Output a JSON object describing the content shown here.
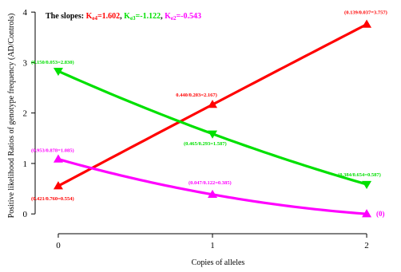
{
  "chart_data": {
    "type": "line",
    "ylabel": "Positive likelihood Ratios of genotype frequency (AD/Controls)",
    "xlabel": "Copies of alleles",
    "x": [
      0,
      1,
      2
    ],
    "xticks": [
      0,
      1,
      2
    ],
    "yticks": [
      0,
      1,
      2,
      3,
      4
    ],
    "xlim": [
      -0.15,
      2.15
    ],
    "ylim": [
      -0.25,
      4.05
    ],
    "slopes": {
      "prefix": "The slopes:",
      "items": [
        {
          "k": "K",
          "sub": "e4",
          "value": "=1.602",
          "color": "#ff0000",
          "sep": ", "
        },
        {
          "k": "K",
          "sub": "e3",
          "value": "=-1.122",
          "color": "#00e000",
          "sep": ", "
        },
        {
          "k": "K",
          "sub": "e2",
          "value": "=-0.543",
          "color": "#ff00ff",
          "sep": ""
        }
      ]
    },
    "series": [
      {
        "id": "e4",
        "color": "#ff0000",
        "values": [
          0.554,
          2.167,
          3.757
        ],
        "point_labels": [
          "(0.421/0.760=0.554)",
          "0.440/0.203=2.167)",
          "(0.139/0.037=3.757)"
        ]
      },
      {
        "id": "e3",
        "color": "#00e000",
        "values": [
          2.83,
          1.587,
          0.587
        ],
        "point_labels": [
          "(0.150/0.053=2.830)",
          "(0.465/0.293=1.587)",
          "(0.384/0.654=0.587)"
        ]
      },
      {
        "id": "e2",
        "color": "#ff00ff",
        "values": [
          1.085,
          0.385,
          0.0
        ],
        "point_labels": [
          "(0.953/0.878=1.085)",
          "(0.047/0.122=0.385)",
          "(0)"
        ]
      }
    ]
  }
}
